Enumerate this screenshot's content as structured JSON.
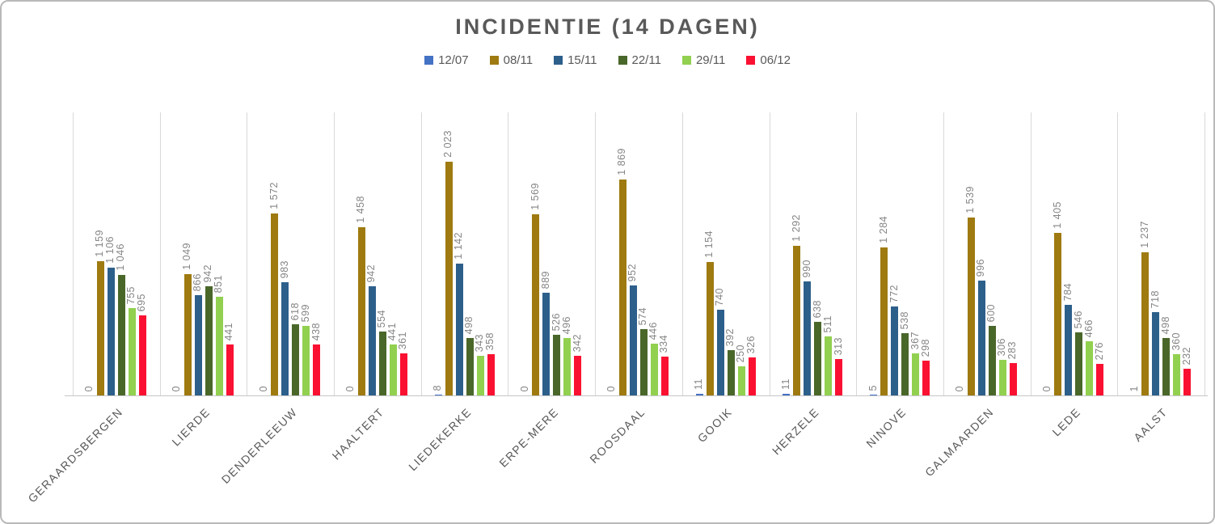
{
  "chart_data": {
    "type": "bar",
    "title": "INCIDENTIE (14 DAGEN)",
    "categories": [
      "GERAARDSBERGEN",
      "LIERDE",
      "DENDERLEEUW",
      "HAALTERT",
      "LIEDEKERKE",
      "ERPE-MERE",
      "ROOSDAAL",
      "GOOIK",
      "HERZELE",
      "NINOVE",
      "GALMAARDEN",
      "LEDE",
      "AALST"
    ],
    "series": [
      {
        "name": "12/07",
        "color": "#4472c4",
        "values": [
          0,
          0,
          0,
          0,
          8,
          0,
          0,
          11,
          11,
          5,
          0,
          0,
          1
        ]
      },
      {
        "name": "08/11",
        "color": "#9e7a10",
        "values": [
          1159,
          1049,
          1572,
          1458,
          2023,
          1569,
          1869,
          1154,
          1292,
          1284,
          1539,
          1405,
          1237
        ]
      },
      {
        "name": "15/11",
        "color": "#2d5f8b",
        "values": [
          1106,
          866,
          983,
          942,
          1142,
          889,
          952,
          740,
          990,
          772,
          996,
          784,
          718
        ]
      },
      {
        "name": "22/11",
        "color": "#4a672a",
        "values": [
          1046,
          942,
          618,
          554,
          498,
          526,
          574,
          392,
          638,
          538,
          600,
          546,
          498
        ]
      },
      {
        "name": "29/11",
        "color": "#92d050",
        "values": [
          755,
          851,
          599,
          441,
          343,
          496,
          446,
          250,
          511,
          367,
          306,
          466,
          360
        ]
      },
      {
        "name": "06/12",
        "color": "#fa1132",
        "values": [
          695,
          441,
          438,
          361,
          358,
          342,
          334,
          326,
          313,
          298,
          283,
          276,
          232
        ]
      }
    ],
    "ylim": [
      0,
      2450
    ],
    "xlabel": "",
    "ylabel": "",
    "y_axis_labels_visible": false,
    "grid": "vertical category separators",
    "legend_position": "top",
    "data_labels": "rotated 90°, thousands separated by space",
    "label_color": "#858585",
    "gridline_color": "#d9d9d9",
    "title_color": "#595959"
  }
}
